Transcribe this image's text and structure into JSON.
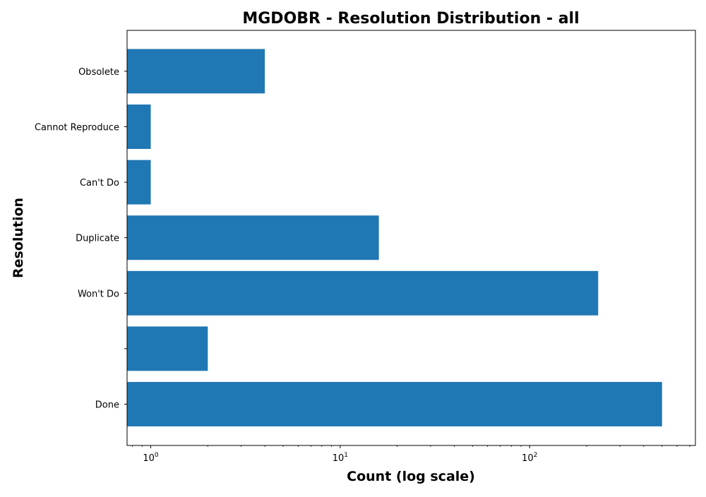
{
  "chart_data": {
    "type": "bar",
    "orientation": "horizontal",
    "title": "MGDOBR - Resolution Distribution - all",
    "xlabel": "Count (log scale)",
    "ylabel": "Resolution",
    "xscale": "log",
    "xlim": [
      0.75,
      750
    ],
    "grid": false,
    "legend": "none",
    "bar_color": "#1f77b4",
    "categories": [
      "Done",
      "",
      "Won't Do",
      "Duplicate",
      "Can't Do",
      "Cannot Reproduce",
      "Obsolete"
    ],
    "values": [
      500,
      2,
      230,
      16,
      1,
      1,
      4
    ],
    "xticks": [
      {
        "base": "10",
        "exp": "0",
        "value": 1
      },
      {
        "base": "10",
        "exp": "1",
        "value": 10
      },
      {
        "base": "10",
        "exp": "2",
        "value": 100
      }
    ]
  }
}
